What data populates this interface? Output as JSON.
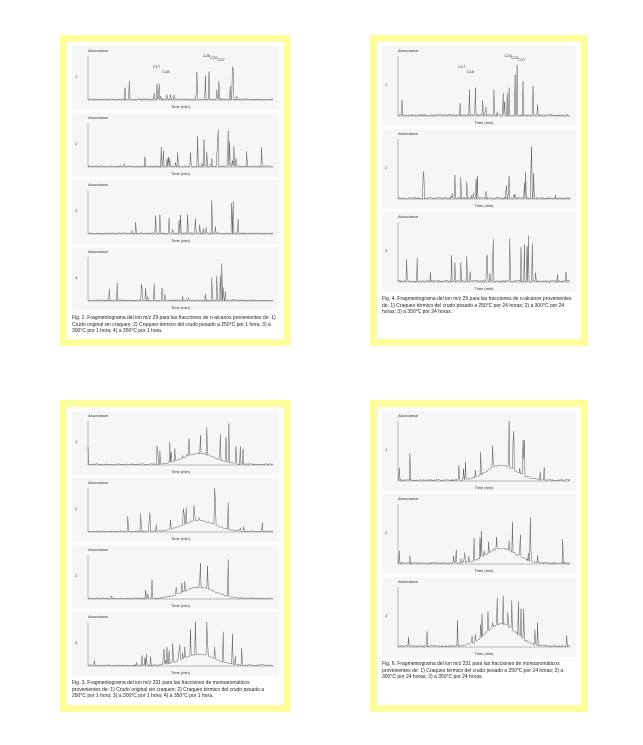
{
  "abundance_label": "Abundance",
  "time_label": "Time (min)",
  "figures": [
    {
      "charts": [
        {
          "index": "1",
          "peaks": [
            "C17",
            "C18",
            "C25",
            "C26",
            "C27"
          ]
        },
        {
          "index": "2",
          "peaks": []
        },
        {
          "index": "3",
          "peaks": []
        },
        {
          "index": "4",
          "peaks": []
        }
      ],
      "caption": "Fig. 2. Fragmentograma del ion m/z 29 para las fracciones de n-alcanos provenientes de: 1) Crudo original sin craqueo; 2) Craqueo térmico del crudo pesado a 250°C por 1 hora; 3) a 300°C por 1 hora; 4) a 350°C por 1 hora."
    },
    {
      "charts": [
        {
          "index": "1",
          "peaks": [
            "C17",
            "C18",
            "C25",
            "C26",
            "C27"
          ]
        },
        {
          "index": "2",
          "peaks": []
        },
        {
          "index": "3",
          "peaks": []
        }
      ],
      "caption": "Fig. 4. Fragmentograma del ion m/z 29 para las fracciones de n-alcanos provenientes de: 1) Craqueo térmico del crudo pesado a 250°C por 24 horas; 2) a 300°C por 24 horas; 3) a 350°C por 24 horas."
    },
    {
      "charts": [
        {
          "index": "1",
          "peaks": []
        },
        {
          "index": "2",
          "peaks": []
        },
        {
          "index": "3",
          "peaks": []
        },
        {
          "index": "4",
          "peaks": []
        }
      ],
      "caption": "Fig. 3. Fragmentograma del ion m/z 231 para las fracciones de monoaromáticos provenientes de: 1) Crudo original sin craqueo; 2) Craqueo térmico del crudo pesado a 250°C por 1 hora; 3) a 300°C por 1 hora; 4) a 350°C por 1 hora."
    },
    {
      "charts": [
        {
          "index": "1",
          "peaks": []
        },
        {
          "index": "2",
          "peaks": []
        },
        {
          "index": "3",
          "peaks": []
        }
      ],
      "caption": "Fig. 6. Fragmentograma del ion m/z 231 para las fracciones de monoaromáticos provenientes de: 1) Craqueo térmico del crudo pesado a 250°C por 24 horas; 2) a 300°C por 24 horas; 3) a 350°C por 24 horas."
    }
  ]
}
